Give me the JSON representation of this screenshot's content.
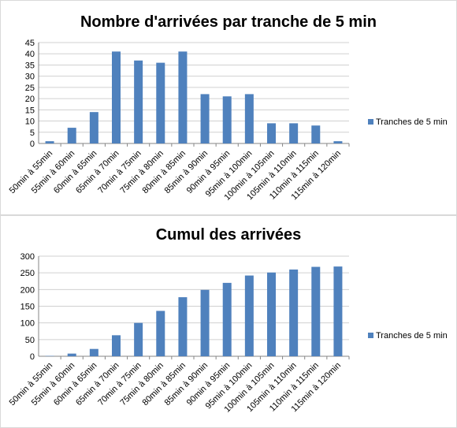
{
  "chart_data": [
    {
      "type": "bar",
      "title": "Nombre d'arrivées par tranche de 5 min",
      "categories": [
        "50min à 55min",
        "55min à 60min",
        "60min à 65min",
        "65min à 70min",
        "70min à 75min",
        "75min à 80min",
        "80min à 85min",
        "85min à 90min",
        "90min à 95min",
        "95min à 100min",
        "100min à 105min",
        "105min à 110min",
        "110min à 115min",
        "115min à 120min"
      ],
      "series": [
        {
          "name": "Tranches de 5 min",
          "values": [
            1,
            7,
            14,
            41,
            37,
            36,
            41,
            22,
            21,
            22,
            9,
            9,
            8,
            1
          ]
        }
      ],
      "ylim": [
        0,
        45
      ],
      "yticks": [
        0,
        5,
        10,
        15,
        20,
        25,
        30,
        35,
        40,
        45
      ],
      "grid": true,
      "legend": "right",
      "bar_color": "#4f81bd"
    },
    {
      "type": "bar",
      "title": "Cumul des arrivées",
      "categories": [
        "50min à 55min",
        "55min à 60min",
        "60min à 65min",
        "65min à 70min",
        "70min à 75min",
        "75min à 80min",
        "80min à 85min",
        "85min à 90min",
        "90min à 95min",
        "95min à 100min",
        "100min à 105min",
        "105min à 110min",
        "110min à 115min",
        "115min à 120min"
      ],
      "series": [
        {
          "name": "Tranches de 5 min",
          "values": [
            1,
            8,
            22,
            63,
            100,
            136,
            177,
            199,
            220,
            242,
            251,
            260,
            268,
            269
          ]
        }
      ],
      "ylim": [
        0,
        300
      ],
      "yticks": [
        0,
        50,
        100,
        150,
        200,
        250,
        300
      ],
      "grid": true,
      "legend": "right",
      "bar_color": "#4f81bd"
    }
  ]
}
